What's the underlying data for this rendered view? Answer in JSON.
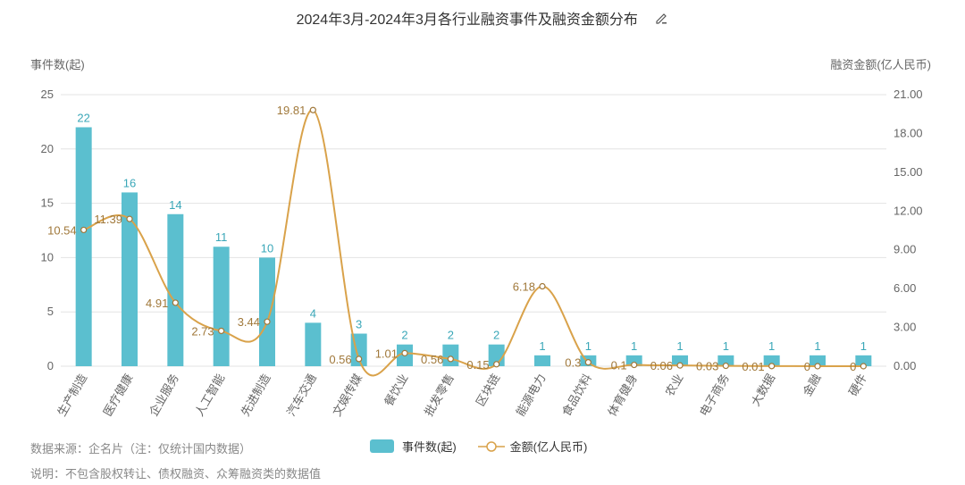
{
  "title": "2024年3月-2024年3月各行业融资事件及融资金额分布",
  "left_axis_title": "事件数(起)",
  "right_axis_title": "融资金额(亿人民币)",
  "footer": {
    "source": "数据来源：企名片（注：仅统计国内数据）",
    "note": "说明：不包含股权转让、债权融资、众筹融资类的数据值"
  },
  "legend": {
    "bar_label": "事件数(起)",
    "line_label": "金额(亿人民币)"
  },
  "colors": {
    "bar": "#5bbfcf",
    "line": "#d9a24a",
    "bar_label": "#3aa7b8",
    "line_label": "#a0783a",
    "grid": "#e3e3e3"
  },
  "chart_data": {
    "type": "bar+line",
    "title": "2024年3月-2024年3月各行业融资事件及融资金额分布",
    "categories": [
      "生产制造",
      "医疗健康",
      "企业服务",
      "人工智能",
      "先进制造",
      "汽车交通",
      "文娱传媒",
      "餐饮业",
      "批发零售",
      "区块链",
      "能源电力",
      "食品饮料",
      "体育健身",
      "农业",
      "电子商务",
      "大数据",
      "金融",
      "硬件"
    ],
    "series": [
      {
        "name": "事件数(起)",
        "type": "bar",
        "axis": "left",
        "values": [
          22,
          16,
          14,
          11,
          10,
          4,
          3,
          2,
          2,
          2,
          1,
          1,
          1,
          1,
          1,
          1,
          1,
          1
        ]
      },
      {
        "name": "金额(亿人民币)",
        "type": "line",
        "axis": "right",
        "values": [
          10.54,
          11.39,
          4.91,
          2.73,
          3.44,
          19.81,
          0.56,
          1.01,
          0.56,
          0.15,
          6.18,
          0.3,
          0.1,
          0.06,
          0.03,
          0.01,
          0,
          0
        ]
      }
    ],
    "ylabel": "事件数(起)",
    "y2label": "融资金额(亿人民币)",
    "ylim": [
      0,
      25
    ],
    "y2lim": [
      0,
      21
    ],
    "yticks": [
      "0",
      "5",
      "10",
      "15",
      "20",
      "25"
    ],
    "y2ticks": [
      "0.00",
      "3.00",
      "6.00",
      "9.00",
      "12.00",
      "15.00",
      "18.00",
      "21.00"
    ],
    "grid": true,
    "legend_position": "bottom"
  }
}
